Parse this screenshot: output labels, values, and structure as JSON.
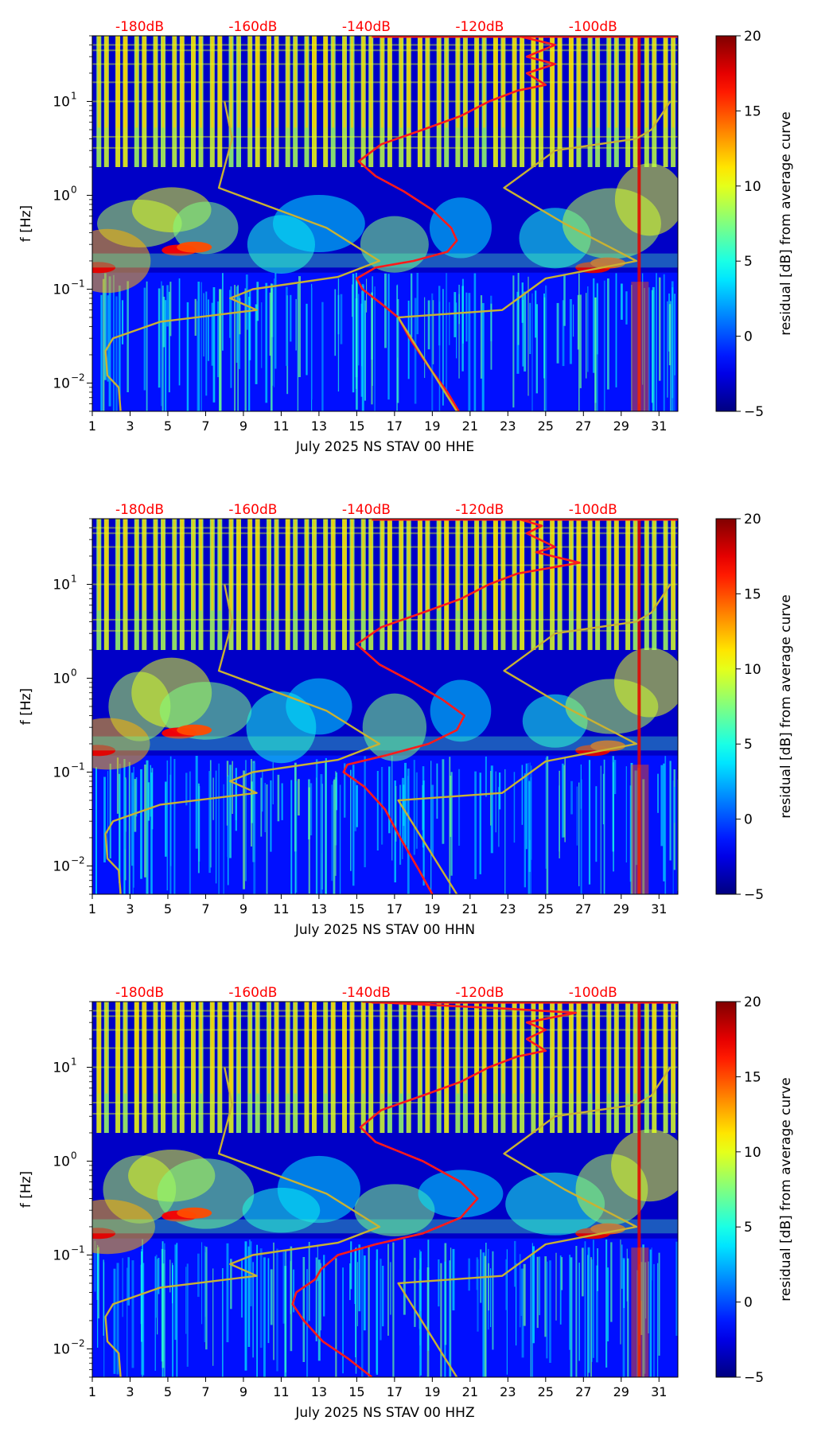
{
  "chart_data": [
    {
      "type": "heatmap",
      "channel": "HHE",
      "xlabel": "July 2025 NS STAV 00 HHE",
      "ylabel": "f [Hz]",
      "x_ticks": [
        "1",
        "3",
        "5",
        "7",
        "9",
        "11",
        "13",
        "15",
        "17",
        "19",
        "21",
        "23",
        "25",
        "27",
        "29",
        "31"
      ],
      "xlim": [
        1,
        32
      ],
      "y_ticks": [
        "10^-2",
        "10^-1",
        "10^0",
        "10^1"
      ],
      "ylim": [
        0.005,
        50
      ],
      "top_axis_ticks": [
        "-180dB",
        "-160dB",
        "-140dB",
        "-120dB",
        "-100dB"
      ],
      "top_axis_color": "#ff0000",
      "colorbar": {
        "label": "residual [dB] from average curve",
        "ticks": [
          "-5",
          "0",
          "5",
          "10",
          "15",
          "20"
        ],
        "range": [
          -5,
          20
        ],
        "colormap": "jet"
      },
      "series": [
        {
          "name": "median PSD (red)",
          "color": "#ff1a1a",
          "points": [
            [
              20.4,
              0.005
            ],
            [
              19.8,
              0.008
            ],
            [
              18.8,
              0.015
            ],
            [
              17.8,
              0.03
            ],
            [
              17.2,
              0.05
            ],
            [
              16.3,
              0.07
            ],
            [
              15.3,
              0.1
            ],
            [
              15.0,
              0.13
            ],
            [
              16.0,
              0.17
            ],
            [
              18.0,
              0.2
            ],
            [
              19.8,
              0.25
            ],
            [
              20.3,
              0.33
            ],
            [
              20.0,
              0.45
            ],
            [
              19.0,
              0.7
            ],
            [
              17.5,
              1.1
            ],
            [
              16.0,
              1.6
            ],
            [
              15.1,
              2.3
            ],
            [
              16.3,
              3.5
            ],
            [
              18.5,
              5
            ],
            [
              20.5,
              7
            ],
            [
              22.0,
              10
            ],
            [
              23.5,
              13
            ],
            [
              25.0,
              15
            ],
            [
              24.0,
              20
            ],
            [
              25.5,
              25
            ],
            [
              24.0,
              30
            ],
            [
              25.5,
              40
            ],
            [
              23.5,
              50
            ]
          ]
        },
        {
          "name": "NLNM (yellow)",
          "color": "#c9b233",
          "points": [
            [
              2.5,
              0.005
            ],
            [
              2.4,
              0.009
            ],
            [
              1.8,
              0.012
            ],
            [
              1.7,
              0.022
            ],
            [
              2.1,
              0.03
            ],
            [
              4.6,
              0.045
            ],
            [
              9.7,
              0.06
            ],
            [
              8.3,
              0.08
            ],
            [
              9.5,
              0.1
            ],
            [
              14,
              0.135
            ],
            [
              16.2,
              0.2
            ],
            [
              13.4,
              0.45
            ],
            [
              7.7,
              1.2
            ],
            [
              8.4,
              4
            ],
            [
              8.0,
              10
            ]
          ]
        },
        {
          "name": "NHNM (yellow)",
          "color": "#c9b233",
          "points": [
            [
              20.3,
              0.005
            ],
            [
              17.2,
              0.05
            ],
            [
              22.7,
              0.06
            ],
            [
              25.0,
              0.13
            ],
            [
              29.8,
              0.2
            ],
            [
              26.0,
              0.5
            ],
            [
              22.8,
              1.2
            ],
            [
              25.5,
              3
            ],
            [
              29.8,
              4
            ],
            [
              30.6,
              5
            ],
            [
              31.6,
              10
            ]
          ]
        }
      ]
    },
    {
      "type": "heatmap",
      "channel": "HHN",
      "xlabel": "July 2025 NS STAV 00 HHN",
      "ylabel": "f [Hz]",
      "x_ticks": [
        "1",
        "3",
        "5",
        "7",
        "9",
        "11",
        "13",
        "15",
        "17",
        "19",
        "21",
        "23",
        "25",
        "27",
        "29",
        "31"
      ],
      "xlim": [
        1,
        32
      ],
      "y_ticks": [
        "10^-2",
        "10^-1",
        "10^0",
        "10^1"
      ],
      "ylim": [
        0.005,
        50
      ],
      "top_axis_ticks": [
        "-180dB",
        "-160dB",
        "-140dB",
        "-120dB",
        "-100dB"
      ],
      "top_axis_color": "#ff0000",
      "colorbar": {
        "label": "residual [dB] from average curve",
        "ticks": [
          "-5",
          "0",
          "5",
          "10",
          "15",
          "20"
        ],
        "range": [
          -5,
          20
        ],
        "colormap": "jet"
      },
      "series": [
        {
          "name": "median PSD (red)",
          "color": "#ff1a1a",
          "points": [
            [
              19.0,
              0.005
            ],
            [
              18.3,
              0.009
            ],
            [
              17.3,
              0.02
            ],
            [
              16.5,
              0.04
            ],
            [
              15.4,
              0.07
            ],
            [
              14.3,
              0.1
            ],
            [
              14.5,
              0.12
            ],
            [
              16.5,
              0.15
            ],
            [
              18.8,
              0.2
            ],
            [
              20.3,
              0.28
            ],
            [
              20.7,
              0.4
            ],
            [
              19.5,
              0.6
            ],
            [
              18.0,
              0.9
            ],
            [
              16.2,
              1.4
            ],
            [
              15.0,
              2.3
            ],
            [
              16.3,
              3.5
            ],
            [
              18.5,
              5
            ],
            [
              20.5,
              7
            ],
            [
              22.0,
              10
            ],
            [
              23.5,
              13
            ],
            [
              26.8,
              17
            ],
            [
              24.5,
              22
            ],
            [
              25.5,
              25
            ],
            [
              24.0,
              35
            ],
            [
              24.8,
              42
            ],
            [
              23.5,
              50
            ]
          ]
        },
        {
          "name": "NLNM (yellow)",
          "color": "#c9b233",
          "points": [
            [
              2.5,
              0.005
            ],
            [
              2.4,
              0.009
            ],
            [
              1.8,
              0.012
            ],
            [
              1.7,
              0.022
            ],
            [
              2.1,
              0.03
            ],
            [
              4.6,
              0.045
            ],
            [
              9.7,
              0.06
            ],
            [
              8.3,
              0.08
            ],
            [
              9.5,
              0.1
            ],
            [
              14,
              0.135
            ],
            [
              16.2,
              0.2
            ],
            [
              13.4,
              0.45
            ],
            [
              7.7,
              1.2
            ],
            [
              8.4,
              4
            ],
            [
              8.0,
              10
            ]
          ]
        },
        {
          "name": "NHNM (yellow)",
          "color": "#c9b233",
          "points": [
            [
              20.3,
              0.005
            ],
            [
              17.2,
              0.05
            ],
            [
              22.7,
              0.06
            ],
            [
              25.0,
              0.13
            ],
            [
              29.8,
              0.2
            ],
            [
              26.0,
              0.5
            ],
            [
              22.8,
              1.2
            ],
            [
              25.5,
              3
            ],
            [
              29.8,
              4
            ],
            [
              30.6,
              5
            ],
            [
              31.6,
              10
            ]
          ]
        }
      ]
    },
    {
      "type": "heatmap",
      "channel": "HHZ",
      "xlabel": "July 2025 NS STAV 00 HHZ",
      "ylabel": "f [Hz]",
      "x_ticks": [
        "1",
        "3",
        "5",
        "7",
        "9",
        "11",
        "13",
        "15",
        "17",
        "19",
        "21",
        "23",
        "25",
        "27",
        "29",
        "31"
      ],
      "xlim": [
        1,
        32
      ],
      "y_ticks": [
        "10^-2",
        "10^-1",
        "10^0",
        "10^1"
      ],
      "ylim": [
        0.005,
        50
      ],
      "top_axis_ticks": [
        "-180dB",
        "-160dB",
        "-140dB",
        "-120dB",
        "-100dB"
      ],
      "top_axis_color": "#ff0000",
      "colorbar": {
        "label": "residual [dB] from average curve",
        "ticks": [
          "-5",
          "0",
          "5",
          "10",
          "15",
          "20"
        ],
        "range": [
          -5,
          20
        ],
        "colormap": "jet"
      },
      "series": [
        {
          "name": "median PSD (red)",
          "color": "#ff1a1a",
          "points": [
            [
              15.8,
              0.005
            ],
            [
              14.5,
              0.008
            ],
            [
              13.2,
              0.012
            ],
            [
              12.2,
              0.02
            ],
            [
              11.6,
              0.03
            ],
            [
              11.8,
              0.04
            ],
            [
              12.8,
              0.055
            ],
            [
              13.1,
              0.07
            ],
            [
              14.0,
              0.1
            ],
            [
              16.0,
              0.13
            ],
            [
              18.5,
              0.17
            ],
            [
              20.5,
              0.25
            ],
            [
              21.4,
              0.4
            ],
            [
              20.5,
              0.6
            ],
            [
              18.5,
              1.0
            ],
            [
              16.0,
              1.6
            ],
            [
              15.2,
              2.3
            ],
            [
              16.3,
              3.5
            ],
            [
              18.5,
              5
            ],
            [
              20.5,
              7
            ],
            [
              22.0,
              10
            ],
            [
              23.5,
              13
            ],
            [
              25.0,
              15
            ],
            [
              24.0,
              20
            ],
            [
              25.0,
              25
            ],
            [
              24.0,
              30
            ],
            [
              26.6,
              38
            ],
            [
              23.0,
              42
            ],
            [
              15.3,
              50
            ]
          ]
        },
        {
          "name": "NLNM (yellow)",
          "color": "#c9b233",
          "points": [
            [
              2.5,
              0.005
            ],
            [
              2.4,
              0.009
            ],
            [
              1.8,
              0.012
            ],
            [
              1.7,
              0.022
            ],
            [
              2.1,
              0.03
            ],
            [
              4.6,
              0.045
            ],
            [
              9.7,
              0.06
            ],
            [
              8.3,
              0.08
            ],
            [
              9.5,
              0.1
            ],
            [
              14,
              0.135
            ],
            [
              16.2,
              0.2
            ],
            [
              13.4,
              0.45
            ],
            [
              7.7,
              1.2
            ],
            [
              8.4,
              4
            ],
            [
              8.0,
              10
            ]
          ]
        },
        {
          "name": "NHNM (yellow)",
          "color": "#c9b233",
          "points": [
            [
              20.3,
              0.005
            ],
            [
              17.2,
              0.05
            ],
            [
              22.7,
              0.06
            ],
            [
              25.0,
              0.13
            ],
            [
              29.8,
              0.2
            ],
            [
              26.0,
              0.5
            ],
            [
              22.8,
              1.2
            ],
            [
              25.5,
              3
            ],
            [
              29.8,
              4
            ],
            [
              30.6,
              5
            ],
            [
              31.6,
              10
            ]
          ]
        }
      ]
    }
  ]
}
